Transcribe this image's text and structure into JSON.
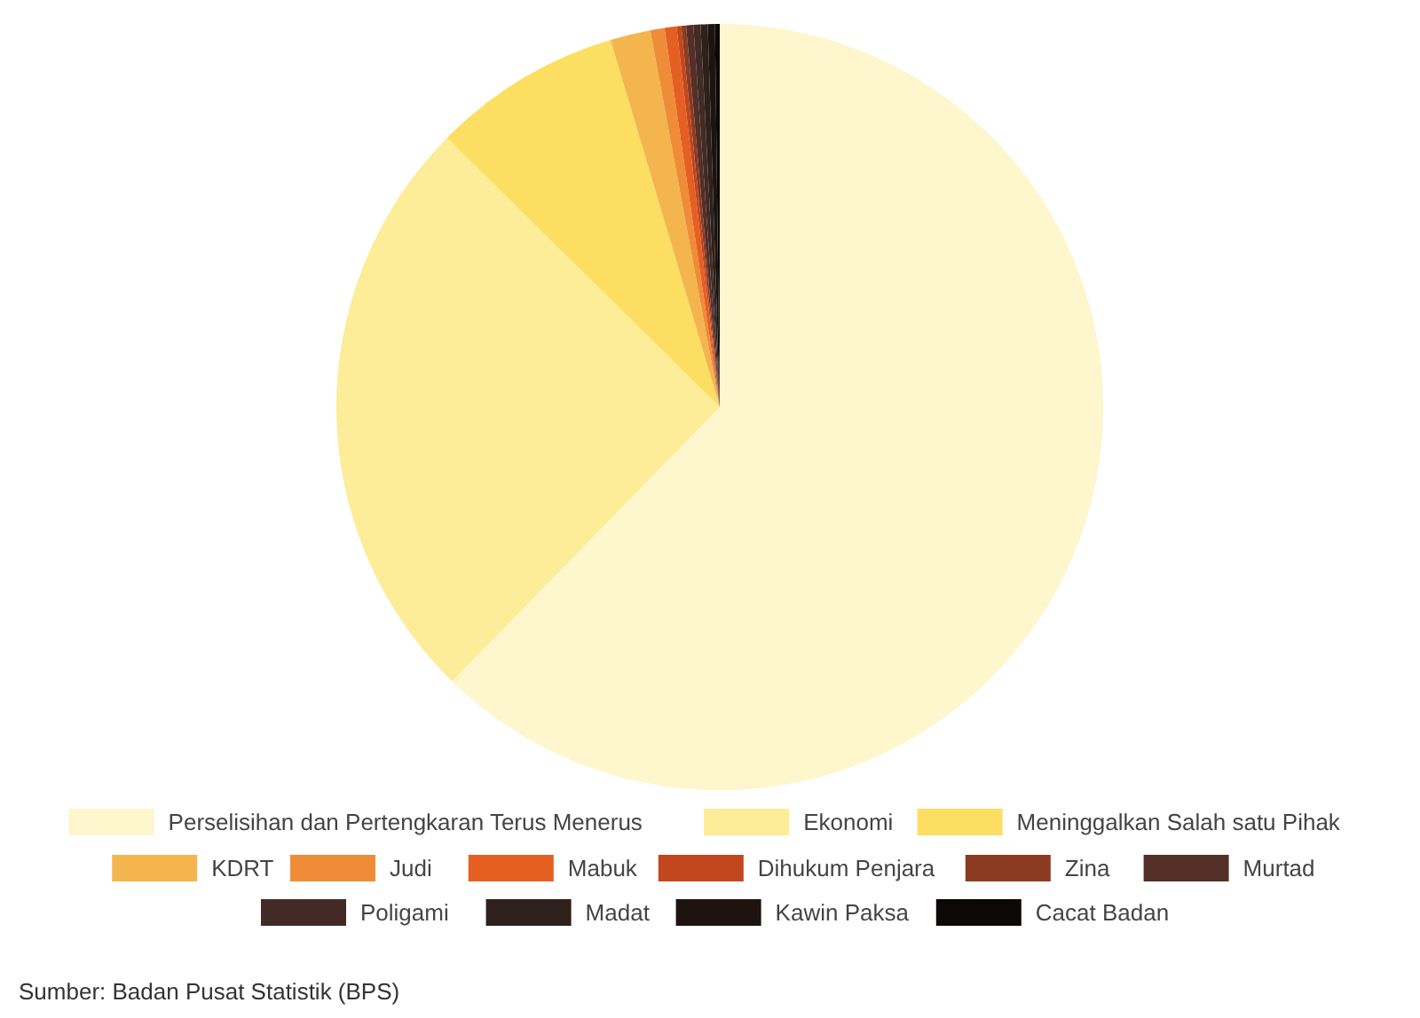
{
  "chart_data": {
    "type": "pie",
    "categories": [
      "Perselisihan dan Pertengkaran Terus Menerus",
      "Ekonomi",
      "Meninggalkan Salah satu Pihak",
      "KDRT",
      "Judi",
      "Mabuk",
      "Dihukum Penjara",
      "Zina",
      "Murtad",
      "Poligami",
      "Madat",
      "Kawin Paksa",
      "Cacat Badan"
    ],
    "values": [
      62.3,
      25.1,
      8.0,
      1.7,
      0.6,
      0.5,
      0.2,
      0.2,
      0.3,
      0.3,
      0.3,
      0.3,
      0.2
    ],
    "colors": [
      "#fef6cc",
      "#fdec98",
      "#fcdf62",
      "#f5b54e",
      "#ef8c38",
      "#e65f22",
      "#c2461e",
      "#8b3b22",
      "#532f27",
      "#422b26",
      "#2e201c",
      "#1d1412",
      "#0b0807"
    ],
    "legend": "bottom",
    "annotations": [
      "Sumber: Badan Pusat Statistik (BPS)"
    ]
  }
}
